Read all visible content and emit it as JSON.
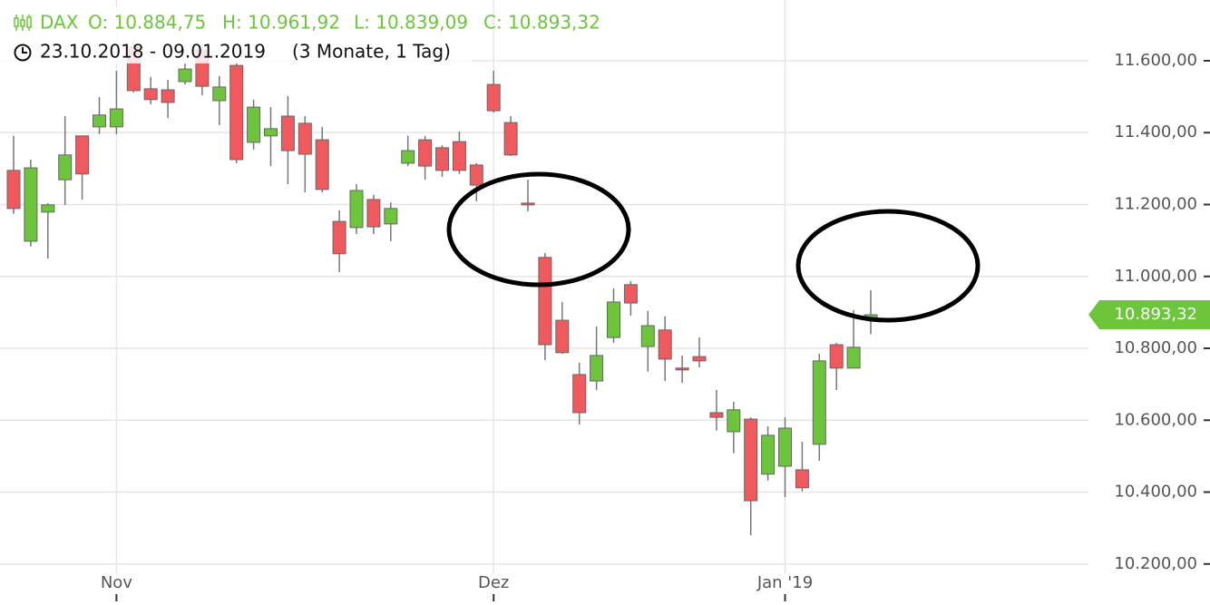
{
  "chart_data": {
    "type": "candlestick",
    "header": {
      "symbol": "DAX",
      "open": "O: 10.884,75",
      "high": "H: 10.961,92",
      "low": "L: 10.839,09",
      "close": "C: 10.893,32"
    },
    "date_range": "23.10.2018 - 09.01.2019",
    "period": "(3 Monate, 1 Tag)",
    "categories": [
      null,
      null,
      null,
      null,
      null,
      null,
      "Nov",
      null,
      null,
      null,
      null,
      null,
      null,
      null,
      null,
      null,
      null,
      null,
      null,
      null,
      null,
      null,
      null,
      null,
      null,
      null,
      null,
      null,
      "Dez",
      null,
      null,
      null,
      null,
      null,
      null,
      null,
      null,
      null,
      null,
      null,
      null,
      null,
      null,
      null,
      null,
      "Jan '19",
      null,
      null,
      null,
      null,
      null
    ],
    "open": [
      11295,
      11098,
      11179,
      11269,
      11391,
      11416,
      11416,
      11638,
      11522,
      11519,
      11542,
      11630,
      11489,
      11587,
      11373,
      11391,
      11446,
      11426,
      11380,
      11153,
      11136,
      11214,
      11146,
      11315,
      11380,
      11358,
      11375,
      11310,
      11534,
      11428,
      11204,
      11053,
      10878,
      10727,
      10709,
      10830,
      10977,
      10805,
      10851,
      10745,
      10777,
      10621,
      10568,
      10603,
      10450,
      10472,
      10462,
      10533,
      10810,
      10745,
      10884.75
    ],
    "high": [
      11391,
      11325,
      11204,
      11446,
      11391,
      11499,
      11572,
      11656,
      11555,
      11547,
      11592,
      11648,
      11557,
      11597,
      11492,
      11471,
      11502,
      11446,
      11416,
      11184,
      11257,
      11227,
      11206,
      11391,
      11391,
      11365,
      11403,
      11315,
      11572,
      11446,
      11269,
      11065,
      10929,
      10760,
      10861,
      10967,
      10987,
      10904,
      10889,
      10780,
      10830,
      10684,
      10651,
      10608,
      10583,
      10608,
      10540,
      10785,
      10815,
      10906,
      10961.92
    ],
    "low": [
      11174,
      11083,
      11050,
      11199,
      11214,
      11396,
      11396,
      11512,
      11479,
      11441,
      11534,
      11504,
      11421,
      11315,
      11353,
      11307,
      11257,
      11234,
      11234,
      11012,
      11118,
      11118,
      11098,
      11307,
      11269,
      11277,
      11285,
      11209,
      11456,
      11335,
      11181,
      10767,
      10785,
      10588,
      10684,
      10815,
      10891,
      10735,
      10709,
      10704,
      10747,
      10571,
      10508,
      10280,
      10432,
      10386,
      10402,
      10487,
      10684,
      10745,
      10839.09
    ],
    "close": [
      11189,
      11302,
      11199,
      11338,
      11285,
      11449,
      11466,
      11517,
      11492,
      11484,
      11577,
      11529,
      11527,
      11325,
      11471,
      11411,
      11350,
      11340,
      11242,
      11063,
      11239,
      11138,
      11189,
      11350,
      11307,
      11295,
      11295,
      11254,
      11461,
      11338,
      11199,
      10810,
      10788,
      10621,
      10780,
      10929,
      10926,
      10863,
      10770,
      10740,
      10765,
      10608,
      10629,
      10376,
      10558,
      10578,
      10412,
      10765,
      10745,
      10803,
      10893.32
    ],
    "up_color": "#6cc53b",
    "down_color": "#f0595d",
    "current_price": {
      "value": 10893.32,
      "label": "10.893,32"
    },
    "ylim": [
      10096,
      11769
    ],
    "yticks": [
      {
        "value": 10200,
        "label": "10.200,00"
      },
      {
        "value": 10400,
        "label": "10.400,00"
      },
      {
        "value": 10600,
        "label": "10.600,00"
      },
      {
        "value": 10800,
        "label": "10.800,00"
      },
      {
        "value": 11000,
        "label": "11.000,00"
      },
      {
        "value": 11200,
        "label": "11.200,00"
      },
      {
        "value": 11400,
        "label": "11.400,00"
      },
      {
        "value": 11600,
        "label": "11.600,00"
      }
    ],
    "grid": true
  }
}
